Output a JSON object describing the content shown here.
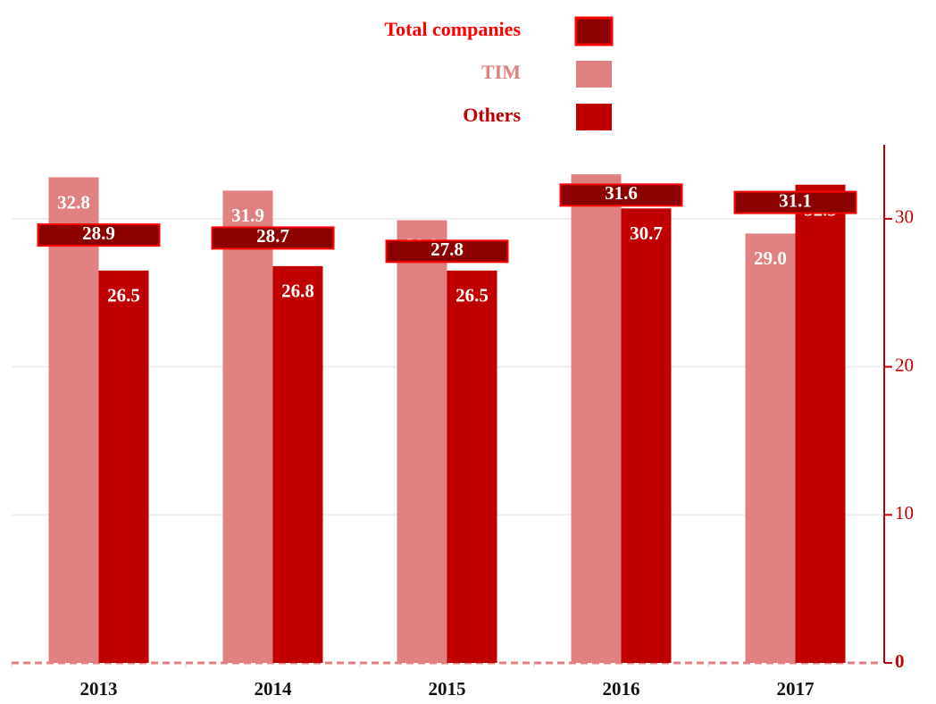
{
  "chart_data": {
    "type": "bar",
    "categories": [
      "2013",
      "2014",
      "2015",
      "2016",
      "2017"
    ],
    "series": [
      {
        "name": "Total companies",
        "mark": "box",
        "color": "#8b0000",
        "edgecolor": "#ff0000",
        "values": [
          28.9,
          28.7,
          27.8,
          31.6,
          31.1
        ],
        "value_labels": [
          "28.9",
          "28.7",
          "27.8",
          "31.6",
          "31.1"
        ]
      },
      {
        "name": "TIM",
        "mark": "bar",
        "color": "#e08080",
        "values": [
          32.8,
          31.9,
          29.9,
          33.0,
          29.0
        ],
        "value_labels": [
          "32.8",
          "31.9",
          "29.9",
          "33.0",
          "29.0"
        ]
      },
      {
        "name": "Others",
        "mark": "bar",
        "color": "#c00000",
        "values": [
          26.5,
          26.8,
          26.5,
          30.7,
          32.3
        ],
        "value_labels": [
          "26.5",
          "26.8",
          "26.5",
          "30.7",
          "32.3"
        ]
      }
    ],
    "ylim": [
      0,
      35
    ],
    "yticks": [
      0,
      10,
      20,
      30
    ],
    "grid": true,
    "y_axis_side": "right",
    "legend": "top"
  }
}
